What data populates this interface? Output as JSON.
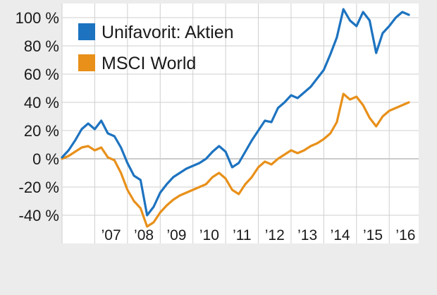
{
  "chart_data": {
    "type": "line",
    "title": "",
    "xlabel": "",
    "ylabel": "",
    "ylim": [
      -60,
      110
    ],
    "xlim": [
      2006.0,
      2016.9
    ],
    "y_ticks": [
      -40,
      -20,
      0,
      20,
      40,
      60,
      80,
      100
    ],
    "y_tick_labels": [
      "-40 %",
      "-20 %",
      "0 %",
      "20 %",
      "40 %",
      "60 %",
      "80 %",
      "100 %"
    ],
    "x_tick_labels": [
      "’07",
      "’08",
      "’09",
      "’10",
      "’11",
      "’12",
      "’13",
      "’14",
      "’15",
      "’16"
    ],
    "grid": true,
    "legend_position": "top-left",
    "series": [
      {
        "name": "Unifavorit: Aktien",
        "color": "#1d73c0",
        "x": [
          2006.0,
          2006.2,
          2006.4,
          2006.6,
          2006.8,
          2007.0,
          2007.2,
          2007.4,
          2007.6,
          2007.8,
          2008.0,
          2008.2,
          2008.4,
          2008.6,
          2008.8,
          2009.0,
          2009.2,
          2009.4,
          2009.6,
          2009.8,
          2010.0,
          2010.2,
          2010.4,
          2010.6,
          2010.8,
          2011.0,
          2011.2,
          2011.4,
          2011.6,
          2011.8,
          2012.0,
          2012.2,
          2012.4,
          2012.6,
          2012.8,
          2013.0,
          2013.2,
          2013.4,
          2013.6,
          2013.8,
          2014.0,
          2014.2,
          2014.4,
          2014.6,
          2014.8,
          2015.0,
          2015.2,
          2015.4,
          2015.6,
          2015.8,
          2016.0,
          2016.2,
          2016.4,
          2016.6
        ],
        "values": [
          1,
          6,
          13,
          21,
          25,
          21,
          27,
          18,
          16,
          8,
          -3,
          -12,
          -15,
          -40,
          -34,
          -24,
          -18,
          -13,
          -10,
          -7,
          -5,
          -3,
          0,
          5,
          9,
          5,
          -6,
          -3,
          5,
          13,
          20,
          27,
          26,
          36,
          40,
          45,
          43,
          47,
          51,
          57,
          63,
          74,
          86,
          106,
          98,
          94,
          104,
          98,
          75,
          89,
          94,
          100,
          104,
          102
        ]
      },
      {
        "name": "MSCI World",
        "color": "#e8901a",
        "x": [
          2006.0,
          2006.2,
          2006.4,
          2006.6,
          2006.8,
          2007.0,
          2007.2,
          2007.4,
          2007.6,
          2007.8,
          2008.0,
          2008.2,
          2008.4,
          2008.6,
          2008.8,
          2009.0,
          2009.2,
          2009.4,
          2009.6,
          2009.8,
          2010.0,
          2010.2,
          2010.4,
          2010.6,
          2010.8,
          2011.0,
          2011.2,
          2011.4,
          2011.6,
          2011.8,
          2012.0,
          2012.2,
          2012.4,
          2012.6,
          2012.8,
          2013.0,
          2013.2,
          2013.4,
          2013.6,
          2013.8,
          2014.0,
          2014.2,
          2014.4,
          2014.6,
          2014.8,
          2015.0,
          2015.2,
          2015.4,
          2015.6,
          2015.8,
          2016.0,
          2016.2,
          2016.4,
          2016.6
        ],
        "values": [
          0,
          2,
          5,
          8,
          9,
          6,
          8,
          1,
          -1,
          -10,
          -22,
          -30,
          -35,
          -48,
          -45,
          -38,
          -33,
          -29,
          -26,
          -24,
          -22,
          -20,
          -18,
          -13,
          -10,
          -14,
          -22,
          -25,
          -18,
          -13,
          -6,
          -2,
          -4,
          0,
          3,
          6,
          4,
          6,
          9,
          11,
          14,
          18,
          26,
          46,
          42,
          44,
          38,
          29,
          23,
          30,
          34,
          36,
          38,
          40
        ]
      }
    ]
  }
}
